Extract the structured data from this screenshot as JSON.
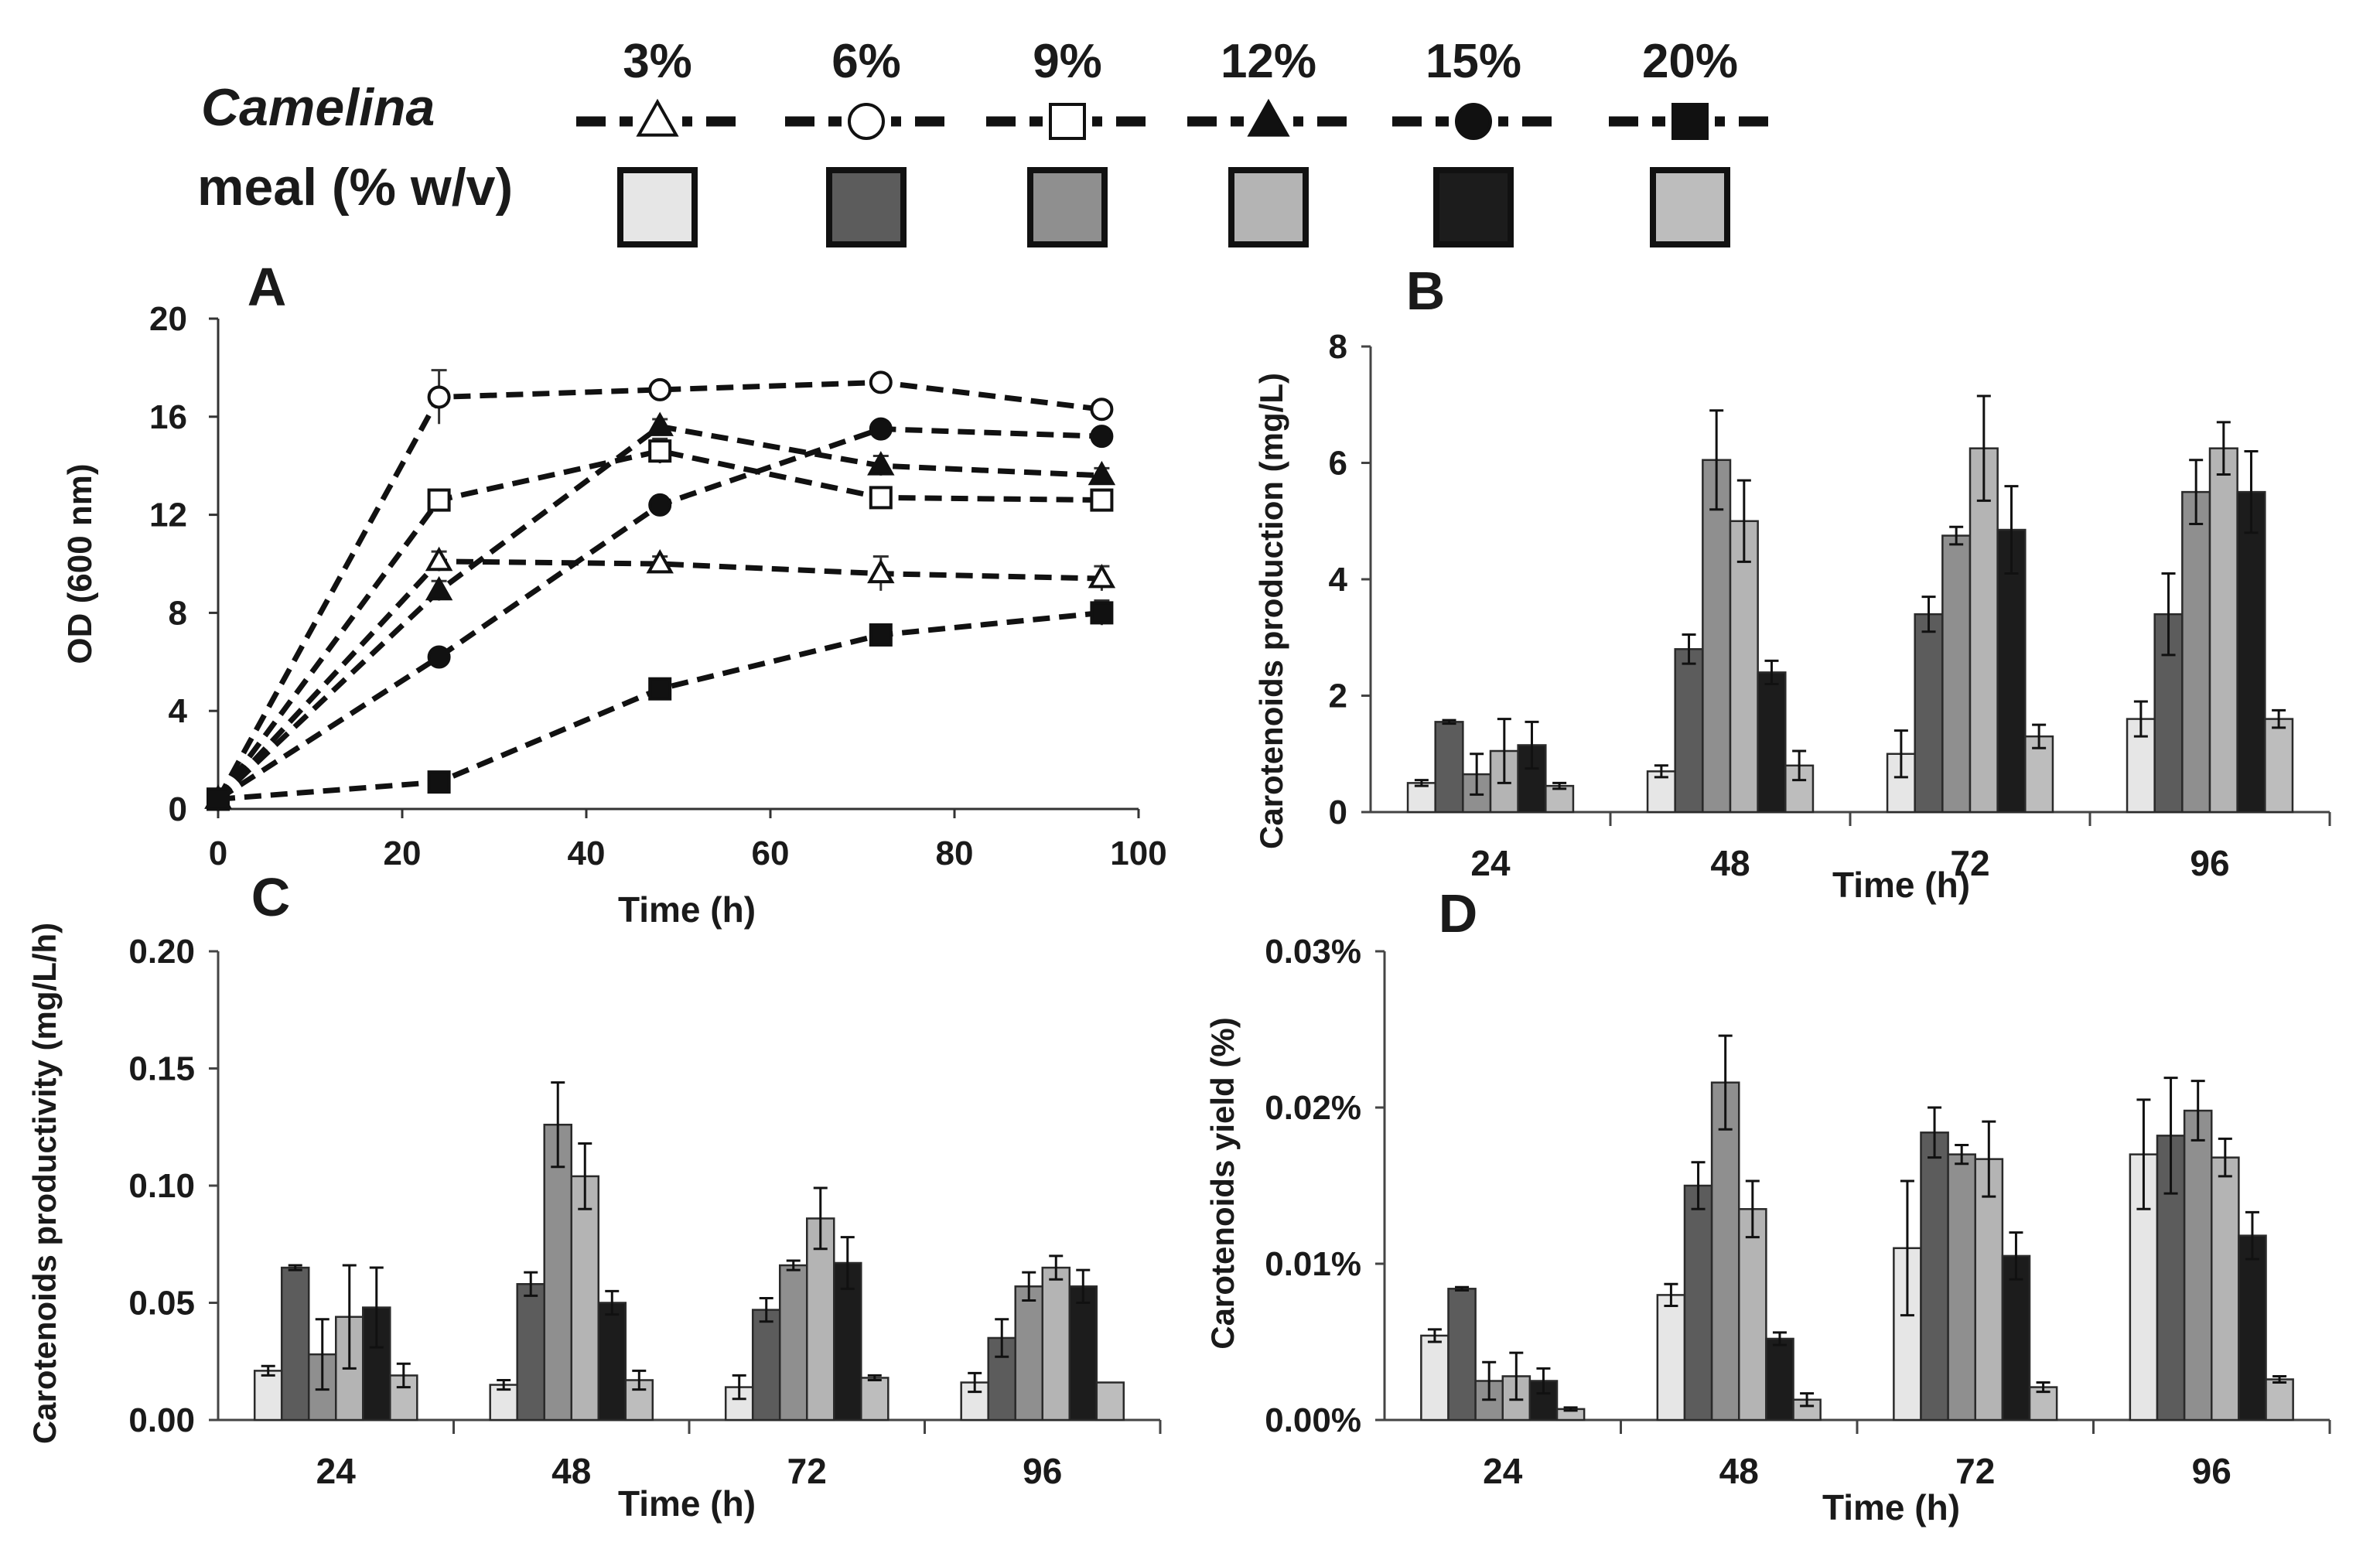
{
  "legend": {
    "title_line1": "Camelina",
    "title_line2": "meal (% w/v)",
    "items": [
      {
        "label": "3%",
        "marker": "triangle-open",
        "bar_color": "#e6e6e6"
      },
      {
        "label": "6%",
        "marker": "circle-open",
        "bar_color": "#5c5c5c"
      },
      {
        "label": "9%",
        "marker": "square-open",
        "bar_color": "#8f8f8f"
      },
      {
        "label": "12%",
        "marker": "triangle-filled",
        "bar_color": "#b4b4b4"
      },
      {
        "label": "15%",
        "marker": "circle-filled",
        "bar_color": "#1c1c1c"
      },
      {
        "label": "20%",
        "marker": "square-filled",
        "bar_color": "#bdbdbd"
      }
    ]
  },
  "chart_data": [
    {
      "id": "A",
      "panel_letter": "A",
      "type": "line",
      "xlabel": "Time (h)",
      "ylabel": "OD (600 nm)",
      "xlim": [
        0,
        100
      ],
      "ylim": [
        0,
        20
      ],
      "xticks": [
        0,
        20,
        40,
        60,
        80,
        100
      ],
      "yticks": [
        0,
        4,
        8,
        12,
        16,
        20
      ],
      "x": [
        0,
        24,
        48,
        72,
        96
      ],
      "series": [
        {
          "name": "3%",
          "values": [
            0.4,
            10.1,
            10.0,
            9.6,
            9.4
          ],
          "errors": [
            0.1,
            0.4,
            0.3,
            0.7,
            0.5
          ]
        },
        {
          "name": "6%",
          "values": [
            0.4,
            16.8,
            17.1,
            17.4,
            16.3
          ],
          "errors": [
            0.1,
            1.1,
            0.2,
            0.3,
            0.2
          ]
        },
        {
          "name": "9%",
          "values": [
            0.4,
            12.6,
            14.6,
            12.7,
            12.6
          ],
          "errors": [
            0.1,
            0.4,
            0.5,
            0.4,
            0.3
          ]
        },
        {
          "name": "12%",
          "values": [
            0.4,
            8.9,
            15.6,
            14.0,
            13.6
          ],
          "errors": [
            0.1,
            0.4,
            0.3,
            0.4,
            0.3
          ]
        },
        {
          "name": "15%",
          "values": [
            0.4,
            6.2,
            12.4,
            15.5,
            15.2
          ],
          "errors": [
            0.1,
            0.3,
            0.3,
            0.3,
            0.3
          ]
        },
        {
          "name": "20%",
          "values": [
            0.4,
            1.1,
            4.9,
            7.1,
            8.0
          ],
          "errors": [
            0.1,
            0.2,
            0.2,
            0.3,
            0.5
          ]
        }
      ]
    },
    {
      "id": "B",
      "panel_letter": "B",
      "type": "bar",
      "xlabel": "Time (h)",
      "ylabel": "Carotenoids production (mg/L)",
      "ylim": [
        0,
        8
      ],
      "yticks": [
        0,
        2,
        4,
        6,
        8
      ],
      "ytick_labels": [
        "0",
        "2",
        "4",
        "6",
        "8"
      ],
      "categories": [
        "24",
        "48",
        "72",
        "96"
      ],
      "series": [
        {
          "name": "3%",
          "values": [
            0.5,
            0.7,
            1.0,
            1.6
          ],
          "errors": [
            0.05,
            0.1,
            0.4,
            0.3
          ]
        },
        {
          "name": "6%",
          "values": [
            1.55,
            2.8,
            3.4,
            3.4
          ],
          "errors": [
            0.03,
            0.25,
            0.3,
            0.7
          ]
        },
        {
          "name": "9%",
          "values": [
            0.65,
            6.05,
            4.75,
            5.5
          ],
          "errors": [
            0.35,
            0.85,
            0.15,
            0.55
          ]
        },
        {
          "name": "12%",
          "values": [
            1.05,
            5.0,
            6.25,
            6.25
          ],
          "errors": [
            0.55,
            0.7,
            0.9,
            0.45
          ]
        },
        {
          "name": "15%",
          "values": [
            1.15,
            2.4,
            4.85,
            5.5
          ],
          "errors": [
            0.4,
            0.2,
            0.75,
            0.7
          ]
        },
        {
          "name": "20%",
          "values": [
            0.45,
            0.8,
            1.3,
            1.6
          ],
          "errors": [
            0.05,
            0.25,
            0.2,
            0.15
          ]
        }
      ]
    },
    {
      "id": "C",
      "panel_letter": "C",
      "type": "bar",
      "xlabel": "Time (h)",
      "ylabel": "Carotenoids productivity (mg/L/h)",
      "ylim": [
        0,
        0.2
      ],
      "yticks": [
        0,
        0.05,
        0.1,
        0.15,
        0.2
      ],
      "ytick_labels": [
        "0.00",
        "0.05",
        "0.10",
        "0.15",
        "0.20"
      ],
      "categories": [
        "24",
        "48",
        "72",
        "96"
      ],
      "series": [
        {
          "name": "3%",
          "values": [
            0.021,
            0.015,
            0.014,
            0.016
          ],
          "errors": [
            0.002,
            0.002,
            0.005,
            0.004
          ]
        },
        {
          "name": "6%",
          "values": [
            0.065,
            0.058,
            0.047,
            0.035
          ],
          "errors": [
            0.001,
            0.005,
            0.005,
            0.008
          ]
        },
        {
          "name": "9%",
          "values": [
            0.028,
            0.126,
            0.066,
            0.057
          ],
          "errors": [
            0.015,
            0.018,
            0.002,
            0.006
          ]
        },
        {
          "name": "12%",
          "values": [
            0.044,
            0.104,
            0.086,
            0.065
          ],
          "errors": [
            0.022,
            0.014,
            0.013,
            0.005
          ]
        },
        {
          "name": "15%",
          "values": [
            0.048,
            0.05,
            0.067,
            0.057
          ],
          "errors": [
            0.017,
            0.005,
            0.011,
            0.007
          ]
        },
        {
          "name": "20%",
          "values": [
            0.019,
            0.017,
            0.018,
            0.016
          ],
          "errors": [
            0.005,
            0.004,
            0.001,
            0.0
          ]
        }
      ]
    },
    {
      "id": "D",
      "panel_letter": "D",
      "type": "bar",
      "xlabel": "Time (h)",
      "ylabel": "Carotenoids yield (%)",
      "ylim": [
        0,
        0.03
      ],
      "yticks": [
        0,
        0.01,
        0.02,
        0.03
      ],
      "ytick_labels": [
        "0.00%",
        "0.01%",
        "0.02%",
        "0.03%"
      ],
      "categories": [
        "24",
        "48",
        "72",
        "96"
      ],
      "series": [
        {
          "name": "3%",
          "values": [
            0.0054,
            0.008,
            0.011,
            0.017
          ],
          "errors": [
            0.0004,
            0.0007,
            0.0043,
            0.0035
          ]
        },
        {
          "name": "6%",
          "values": [
            0.0084,
            0.015,
            0.0184,
            0.0182
          ],
          "errors": [
            0.0001,
            0.0015,
            0.0016,
            0.0037
          ]
        },
        {
          "name": "9%",
          "values": [
            0.0025,
            0.0216,
            0.017,
            0.0198
          ],
          "errors": [
            0.0012,
            0.003,
            0.0006,
            0.0019
          ]
        },
        {
          "name": "12%",
          "values": [
            0.0028,
            0.0135,
            0.0167,
            0.0168
          ],
          "errors": [
            0.0015,
            0.0018,
            0.0024,
            0.0012
          ]
        },
        {
          "name": "15%",
          "values": [
            0.0025,
            0.0052,
            0.0105,
            0.0118
          ],
          "errors": [
            0.0008,
            0.0004,
            0.0015,
            0.0015
          ]
        },
        {
          "name": "20%",
          "values": [
            0.0007,
            0.0013,
            0.0021,
            0.0026
          ],
          "errors": [
            0.0001,
            0.0004,
            0.0003,
            0.0002
          ]
        }
      ]
    }
  ]
}
